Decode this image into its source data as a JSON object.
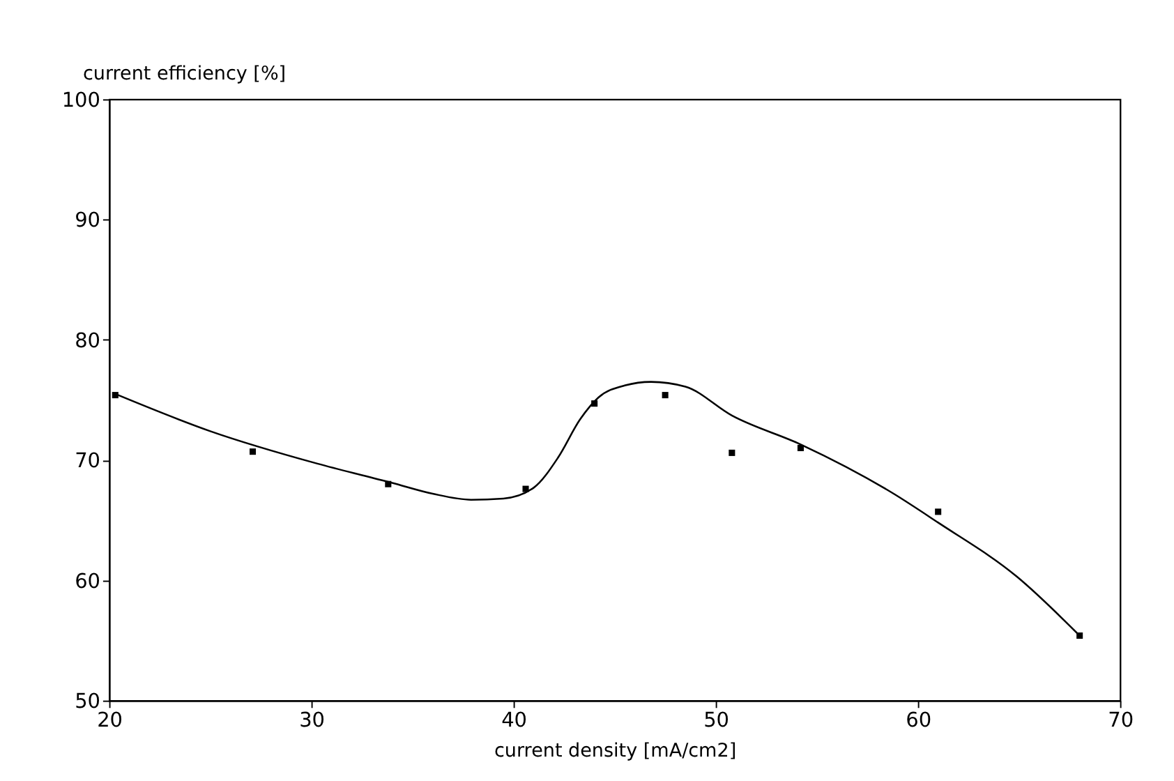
{
  "chart_data": {
    "type": "scatter",
    "xlabel": "current density [mA/cm2]",
    "ylabel": "current efficiency [%]",
    "xlim": [
      20,
      70
    ],
    "xticks": [
      20,
      30,
      40,
      50,
      60,
      70
    ],
    "ylim": [
      50,
      100
    ],
    "yticks": [
      50,
      60,
      70,
      80,
      90,
      100
    ],
    "grid": false,
    "series": [
      {
        "color": "#000000",
        "marker": "square",
        "x": [
          20.3,
          27.1,
          33.8,
          40.6,
          44.0,
          47.5,
          50.8,
          54.2,
          61.0,
          68.0
        ],
        "values": [
          75.4,
          70.7,
          68.0,
          67.6,
          74.7,
          75.4,
          70.6,
          71.0,
          65.7,
          55.4
        ]
      },
      {
        "type": "line",
        "color": "#000000",
        "line_style": "solid",
        "x": [
          20.3,
          25,
          30.3,
          34,
          36,
          37.9,
          39.5,
          41,
          42.2,
          43.3,
          44.2,
          45.5,
          46.8,
          48.5,
          50.8,
          54.2,
          58.8,
          61,
          64.9,
          68
        ],
        "values": [
          75.5,
          72.4,
          69.7,
          68.1,
          67.2,
          66.7,
          66.8,
          67.7,
          70.2,
          73.4,
          75.2,
          76.2,
          76.5,
          76.1,
          73.7,
          71.3,
          67.2,
          64.8,
          60.3,
          55.4
        ]
      }
    ]
  }
}
